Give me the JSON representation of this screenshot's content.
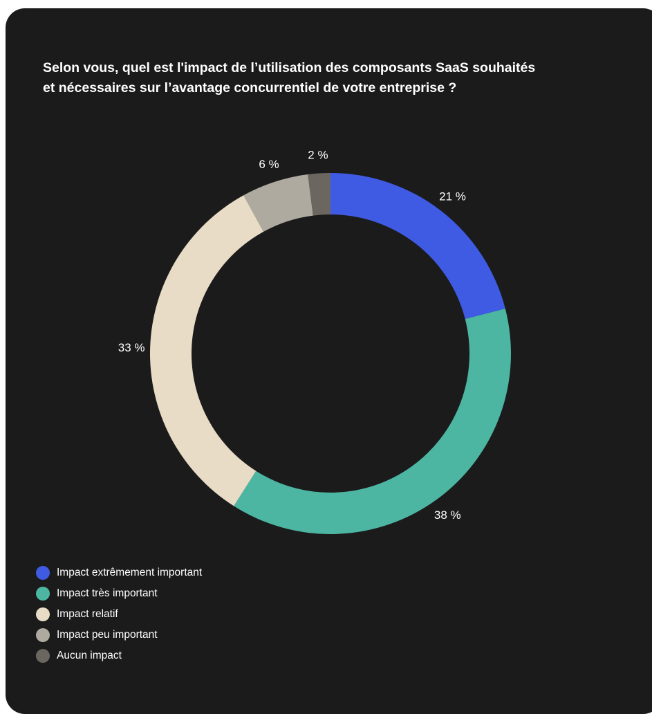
{
  "title_lines": [
    "Selon vous, quel est l'impact de l’utilisation des composants SaaS souhaités",
    "et nécessaires sur l’avantage concurrentiel de votre entreprise ?"
  ],
  "chart_data": {
    "type": "pie",
    "title": "Selon vous, quel est l'impact de l’utilisation des composants SaaS souhaités et nécessaires sur l’avantage concurrentiel de votre entreprise ?",
    "donut": true,
    "legend_position": "bottom-left",
    "start": "12 o'clock, clockwise",
    "slices": [
      {
        "label": "Impact extrêmement important",
        "value": 21,
        "value_label": "21 %",
        "color": "#3f5be4"
      },
      {
        "label": "Impact très important",
        "value": 38,
        "value_label": "38 %",
        "color": "#4db6a3"
      },
      {
        "label": "Impact relatif",
        "value": 33,
        "value_label": "33 %",
        "color": "#e8dcc6"
      },
      {
        "label": "Impact peu important",
        "value": 6,
        "value_label": "6 %",
        "color": "#aeaa9f"
      },
      {
        "label": "Aucun impact",
        "value": 2,
        "value_label": "2 %",
        "color": "#6b6660"
      }
    ]
  },
  "colors": {
    "background": "#1b1b1b",
    "text": "#ffffff"
  }
}
